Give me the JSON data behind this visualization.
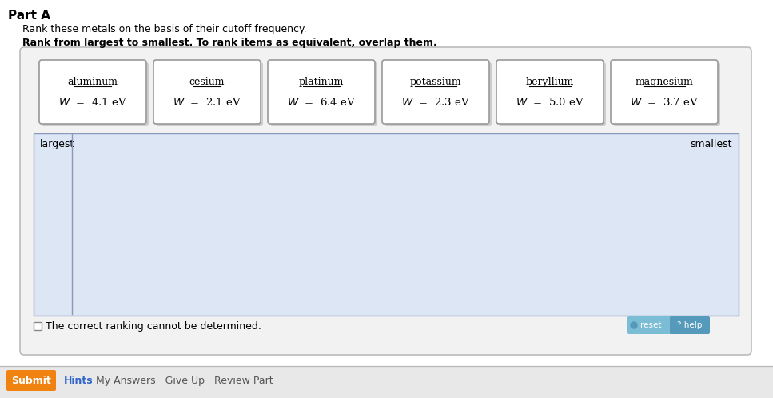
{
  "title_part": "Part A",
  "subtitle1": "Rank these metals on the basis of their cutoff frequency.",
  "subtitle2": "Rank from largest to smallest. To rank items as equivalent, overlap them.",
  "metals": [
    {
      "name": "aluminum",
      "W": "4.1 eV"
    },
    {
      "name": "cesium",
      "W": "2.1 eV"
    },
    {
      "name": "platinum",
      "W": "6.4 eV"
    },
    {
      "name": "potassium",
      "W": "2.3 eV"
    },
    {
      "name": "beryllium",
      "W": "5.0 eV"
    },
    {
      "name": "magnesium",
      "W": "3.7 eV"
    }
  ],
  "panel_bg": "#dce6f5",
  "submit_bg": "#f0820f",
  "submit_text": "#ffffff",
  "hints_color": "#3366cc",
  "font_color": "#000000",
  "largest_text": "largest",
  "smallest_text": "smallest",
  "checkbox_label": "The correct ranking cannot be determined.",
  "submit_label": "Submit",
  "hints_label": "Hints",
  "other_labels": "My Answers   Give Up   Review Part",
  "reset_label": "reset",
  "help_label": "? help"
}
